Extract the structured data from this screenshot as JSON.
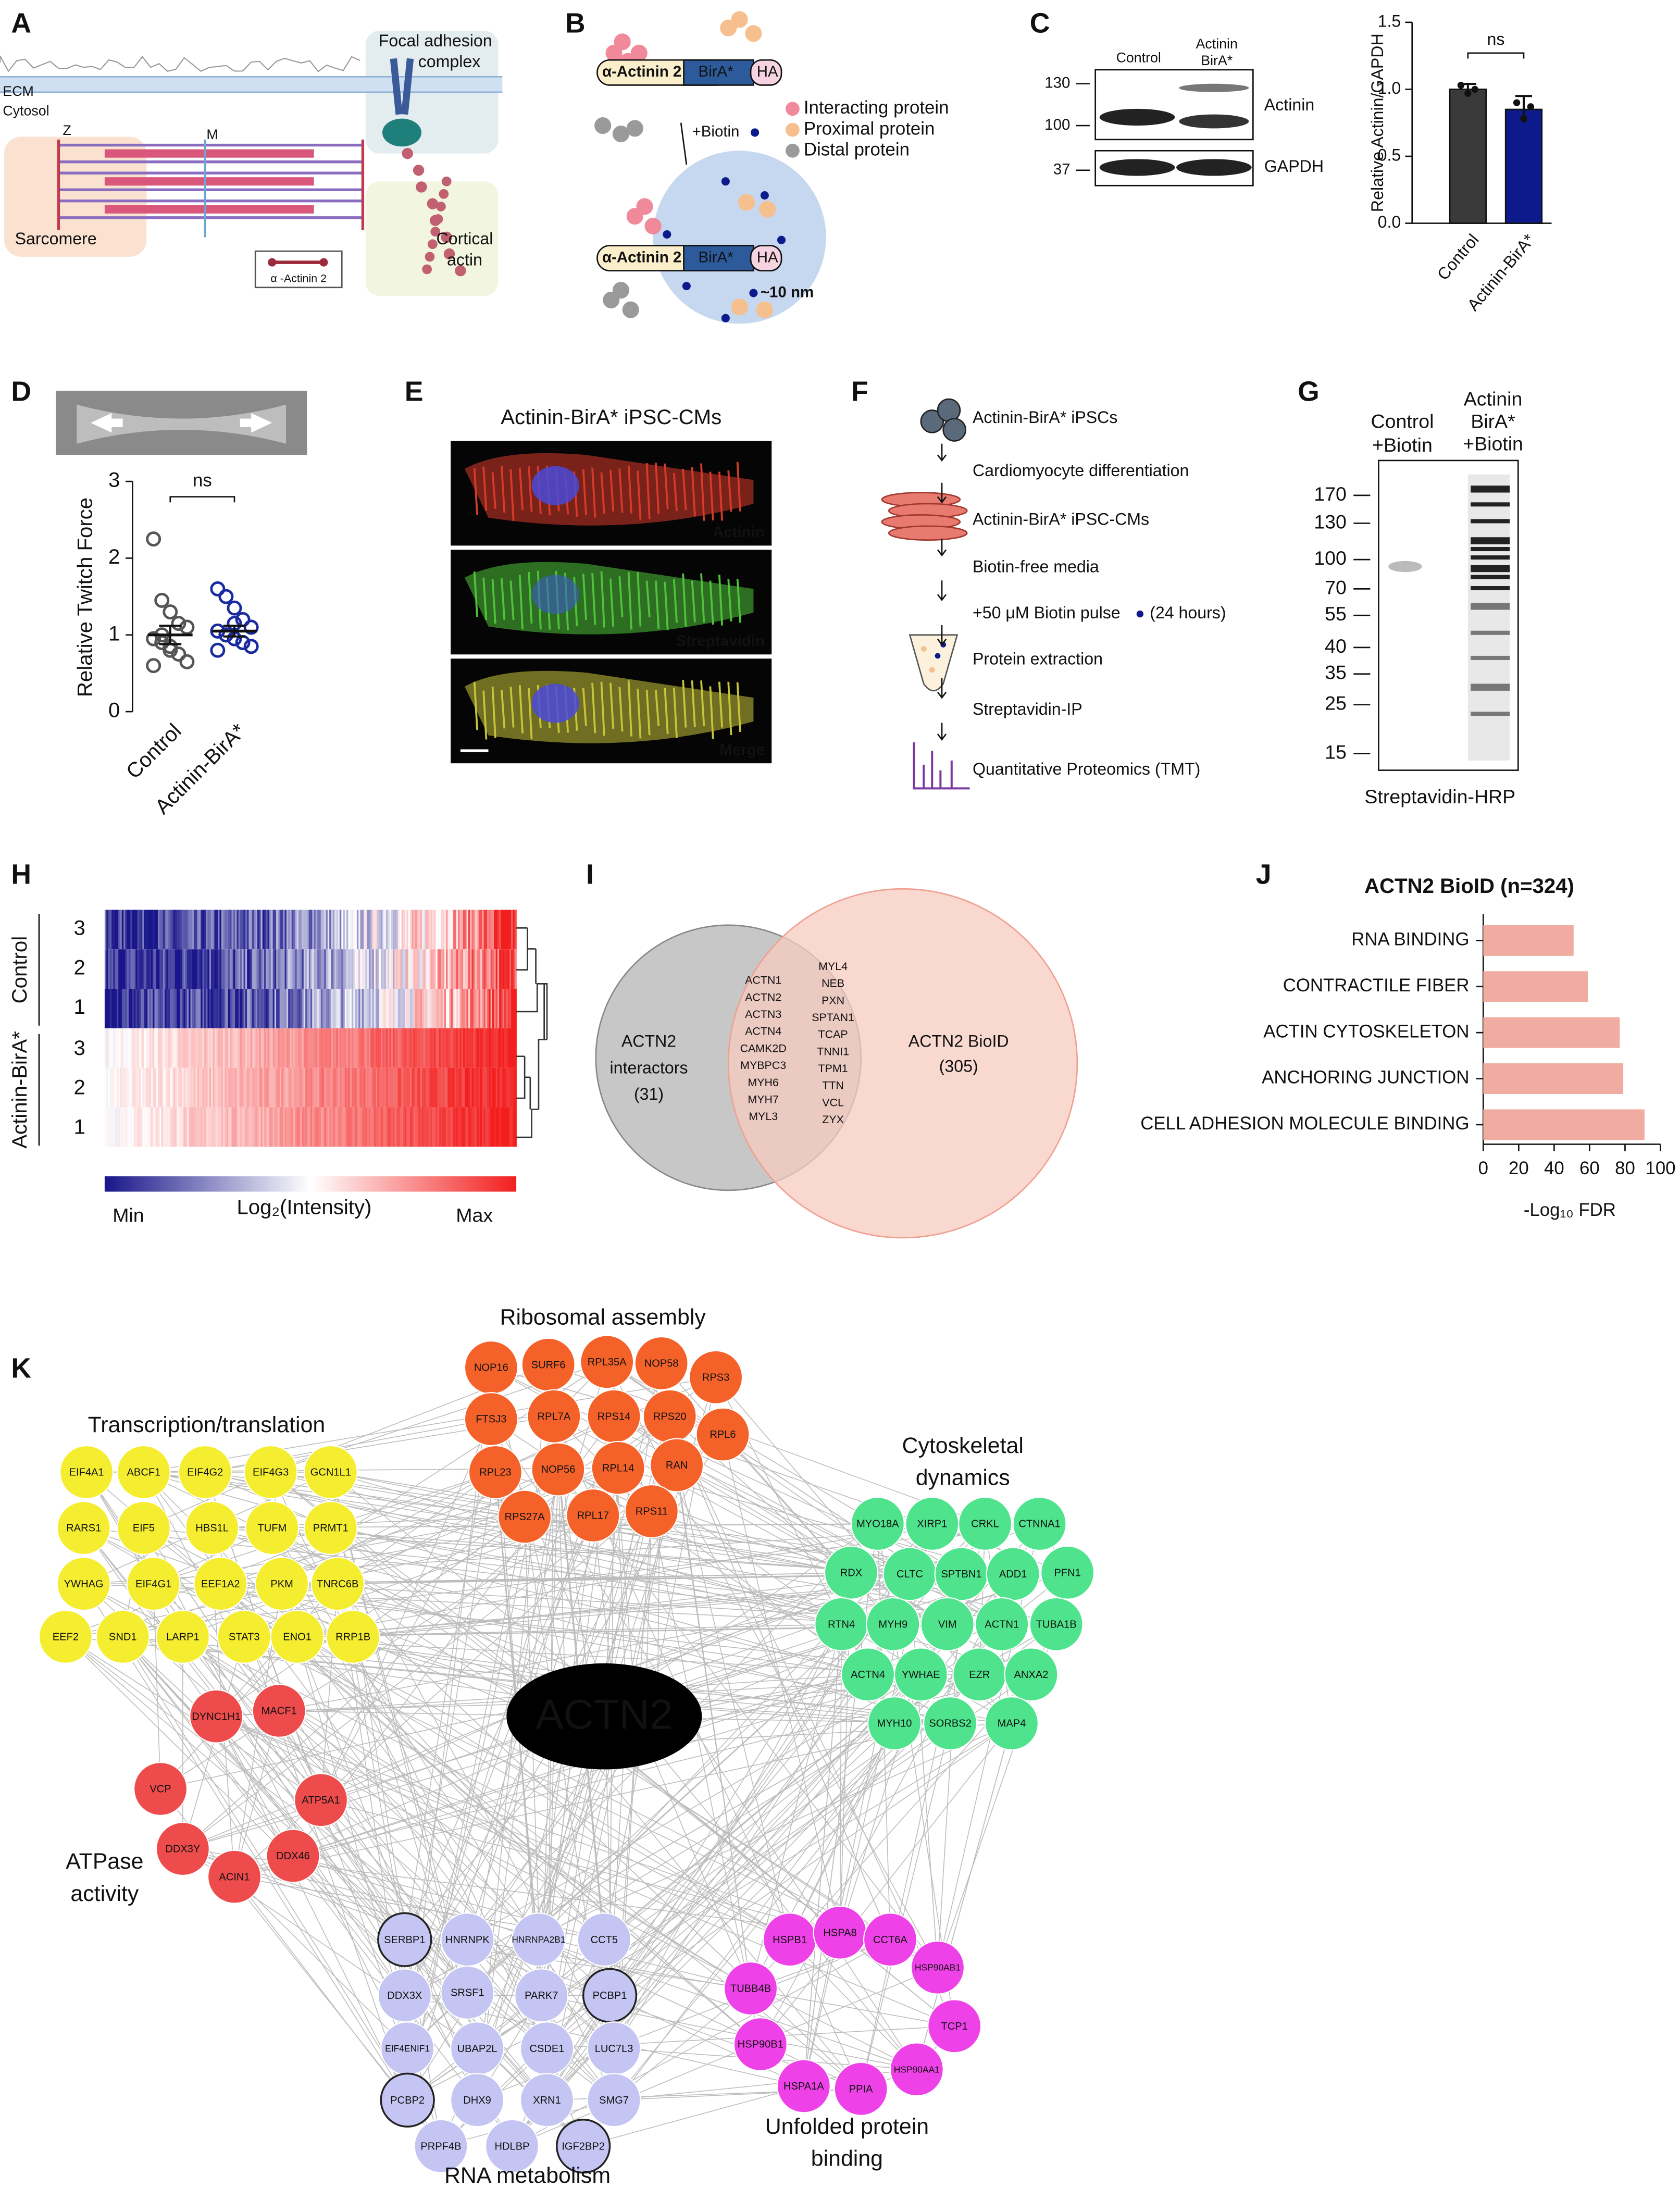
{
  "panel_letters": [
    "A",
    "B",
    "C",
    "D",
    "E",
    "F",
    "G",
    "H",
    "I",
    "J",
    "K"
  ],
  "panel_a": {
    "ecm": "ECM",
    "cytosol": "Cytosol",
    "z": "Z",
    "m": "M",
    "sarcomere": "Sarcomere",
    "focal_adhesion": [
      "Focal adhesion",
      "complex"
    ],
    "cortical_actin": [
      "Cortical",
      "actin"
    ],
    "actinin_label": "α -Actinin 2"
  },
  "panel_b": {
    "construct": "α-Actinin 2",
    "bira": "BirA*",
    "ha": "HA",
    "biotin": "+Biotin",
    "legend": [
      "Interacting protein",
      "Proximal protein",
      "Distal protein"
    ],
    "distance": "~10 nm"
  },
  "panel_c_blot": {
    "lanes": [
      [
        "Control"
      ],
      [
        "Actinin",
        "BirA*"
      ]
    ],
    "markers": [
      130,
      100,
      37
    ],
    "bands": [
      "Actinin",
      "GAPDH"
    ]
  },
  "panel_e": {
    "title": "Actinin-BirA* iPSC-CMs",
    "channels": [
      {
        "label": "Actinin",
        "color": "#e8322a"
      },
      {
        "label": "Streptavidin",
        "color": "#3ec43e"
      },
      {
        "label": "Merge",
        "color": "#ffffff"
      }
    ]
  },
  "panel_f": {
    "steps": [
      "Actinin-BirA* iPSCs",
      "Cardiomyocyte differentiation",
      "Actinin-BirA* iPSC-CMs",
      "Biotin-free media",
      "+50 μM Biotin pulse",
      "Protein extraction",
      "Streptavidin-IP",
      "Quantitative Proteomics (TMT)"
    ],
    "pulse_note": "(24 hours)"
  },
  "panel_g": {
    "lanes": [
      [
        "Control",
        "+Biotin"
      ],
      [
        "Actinin",
        "BirA*",
        "+Biotin"
      ]
    ],
    "markers": [
      170,
      130,
      100,
      70,
      55,
      40,
      35,
      25,
      15
    ],
    "caption": "Streptavidin-HRP"
  },
  "panel_h": {
    "groups": [
      {
        "name": "Control",
        "rows": [
          3,
          2,
          1
        ]
      },
      {
        "name": "Actinin-BirA*",
        "rows": [
          3,
          2,
          1
        ]
      }
    ],
    "colorbar": {
      "min": "Min",
      "label": "Log₂(Intensity)",
      "max": "Max"
    }
  },
  "panel_i": {
    "left_label": [
      "ACTN2",
      "interactors",
      "(31)"
    ],
    "right_label": [
      "ACTN2 BioID",
      "(305)"
    ],
    "overlap": [
      [
        "ACTN1",
        "ACTN2",
        "ACTN3",
        "ACTN4",
        "CAMK2D",
        "MYBPC3",
        "MYH6",
        "MYH7",
        "MYL3"
      ],
      [
        "MYL4",
        "NEB",
        "PXN",
        "SPTAN1",
        "TCAP",
        "TNNI1",
        "TPM1",
        "TTN",
        "VCL",
        "ZYX"
      ]
    ]
  },
  "chart_data": [
    {
      "type": "bar",
      "ylabel": "Relative Actinin/GAPDH",
      "categories": [
        "Control",
        "Actinin-BirA*"
      ],
      "values": [
        1.0,
        0.85
      ],
      "errors": [
        0.04,
        0.1
      ],
      "points": [
        [
          1.03,
          0.97,
          1.0
        ],
        [
          0.9,
          0.78,
          0.87
        ]
      ],
      "colors": [
        "#3a3a3a",
        "#0d1a8c"
      ],
      "ylim": [
        0,
        1.5
      ],
      "yticks": [
        {
          "value": 0,
          "label": "0.0"
        },
        {
          "value": 0.5,
          "label": "0.5"
        },
        {
          "value": 1,
          "label": "1.0"
        },
        {
          "value": 1.5,
          "label": "1.5"
        }
      ],
      "annotation": "ns"
    },
    {
      "type": "dot",
      "ylabel": "Relative Twitch Force",
      "categories": [
        "Control",
        "Actinin-BirA*"
      ],
      "points": [
        [
          2.25,
          1.45,
          1.3,
          1.15,
          1.1,
          0.95,
          0.9,
          0.8,
          0.75,
          0.65,
          0.6,
          1.0,
          0.85
        ],
        [
          1.6,
          1.5,
          1.35,
          1.2,
          1.1,
          1.05,
          1.0,
          0.95,
          0.9,
          0.85,
          0.8,
          1.0,
          1.15
        ]
      ],
      "means": [
        1.0,
        1.05
      ],
      "errors": [
        0.12,
        0.07
      ],
      "colors": [
        "#555555",
        "#1a2aa0"
      ],
      "ylim": [
        0,
        3
      ],
      "yticks": [
        0,
        1,
        2,
        3
      ],
      "annotation": "ns"
    },
    {
      "type": "hbar",
      "title": "ACTN2 BioID (n=324)",
      "categories": [
        "RNA BINDING",
        "CONTRACTILE FIBER",
        "ACTIN CYTOSKELETON",
        "ANCHORING JUNCTION",
        "CELL ADHESION MOLECULE BINDING"
      ],
      "values": [
        51,
        59,
        77,
        79,
        91
      ],
      "color": "#f0aca0",
      "label_colors": [
        "#e8322a",
        "#111111",
        "#111111",
        "#111111",
        "#111111"
      ],
      "xlim": [
        0,
        100
      ],
      "xticks": [
        0,
        20,
        40,
        60,
        80,
        100
      ],
      "xlabel": "-Log₁₀ FDR"
    }
  ],
  "panel_k": {
    "center": "ACTN2",
    "groups": [
      {
        "title": [
          "Transcription/translation"
        ],
        "color": "#f5ee30",
        "nodes": [
          "EIF4A1",
          "ABCF1",
          "EIF4G2",
          "EIF4G3",
          "GCN1L1",
          "RARS1",
          "EIF5",
          "HBS1L",
          "TUFM",
          "PRMT1",
          "YWHAG",
          "EIF4G1",
          "EEF1A2",
          "PKM",
          "TNRC6B",
          "EEF2",
          "SND1",
          "LARP1",
          "STAT3",
          "ENO1",
          "RRP1B"
        ],
        "outlined": []
      },
      {
        "title": [
          "Ribosomal assembly"
        ],
        "color": "#f4622a",
        "nodes": [
          "NOP16",
          "SURF6",
          "RPL35A",
          "NOP58",
          "RPS3",
          "FTSJ3",
          "RPL7A",
          "RPS14",
          "RPS20",
          "RPL6",
          "RPL23",
          "NOP56",
          "RPL14",
          "RAN",
          "RPS27A",
          "RPL17",
          "RPS11"
        ],
        "outlined": []
      },
      {
        "title": [
          "Cytoskeletal",
          "dynamics"
        ],
        "color": "#4ee38c",
        "nodes": [
          "MYO18A",
          "XIRP1",
          "CRKL",
          "CTNNA1",
          "RDX",
          "CLTC",
          "SPTBN1",
          "ADD1",
          "PFN1",
          "RTN4",
          "MYH9",
          "VIM",
          "ACTN1",
          "TUBA1B",
          "ACTN4",
          "YWHAE",
          "EZR",
          "ANXA2",
          "MYH10",
          "SORBS2",
          "MAP4"
        ],
        "outlined": []
      },
      {
        "title": [
          "ATPase",
          "activity"
        ],
        "color": "#ee4c4c",
        "nodes": [
          "DYNC1H1",
          "MACF1",
          "VCP",
          "ATP5A1",
          "DDX3Y",
          "DDX46",
          "ACIN1"
        ],
        "outlined": []
      },
      {
        "title": [
          "RNA metabolism"
        ],
        "color": "#c5c5f3",
        "nodes": [
          "SERBP1",
          "HNRNPK",
          "HNRNPA2B1",
          "CCT5",
          "DDX3X",
          "SRSF1",
          "PARK7",
          "PCBP1",
          "EIF4ENIF1",
          "UBAP2L",
          "CSDE1",
          "LUC7L3",
          "PCBP2",
          "DHX9",
          "XRN1",
          "SMG7",
          "PRPF4B",
          "HDLBP",
          "IGF2BP2"
        ],
        "outlined": [
          0,
          7,
          12,
          18
        ]
      },
      {
        "title": [
          "Unfolded protein",
          "binding"
        ],
        "color": "#ee42e8",
        "nodes": [
          "HSPB1",
          "HSPA8",
          "CCT6A",
          "HSP90AB1",
          "TUBB4B",
          "TCP1",
          "HSP90B1",
          "HSPA1A",
          "PPIA",
          "HSP90AA1"
        ],
        "outlined": []
      }
    ]
  }
}
